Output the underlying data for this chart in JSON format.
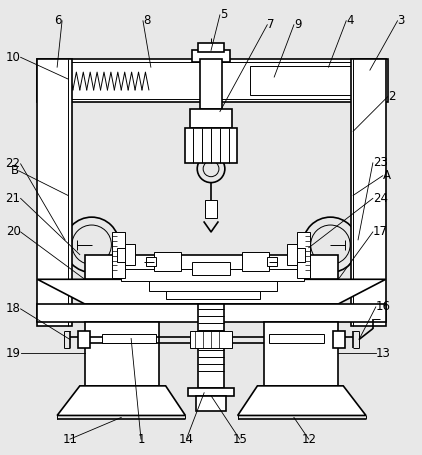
{
  "bg_color": "#e8e8e8",
  "line_color": "#000000",
  "fig_width": 4.22,
  "fig_height": 4.55,
  "dpi": 100
}
